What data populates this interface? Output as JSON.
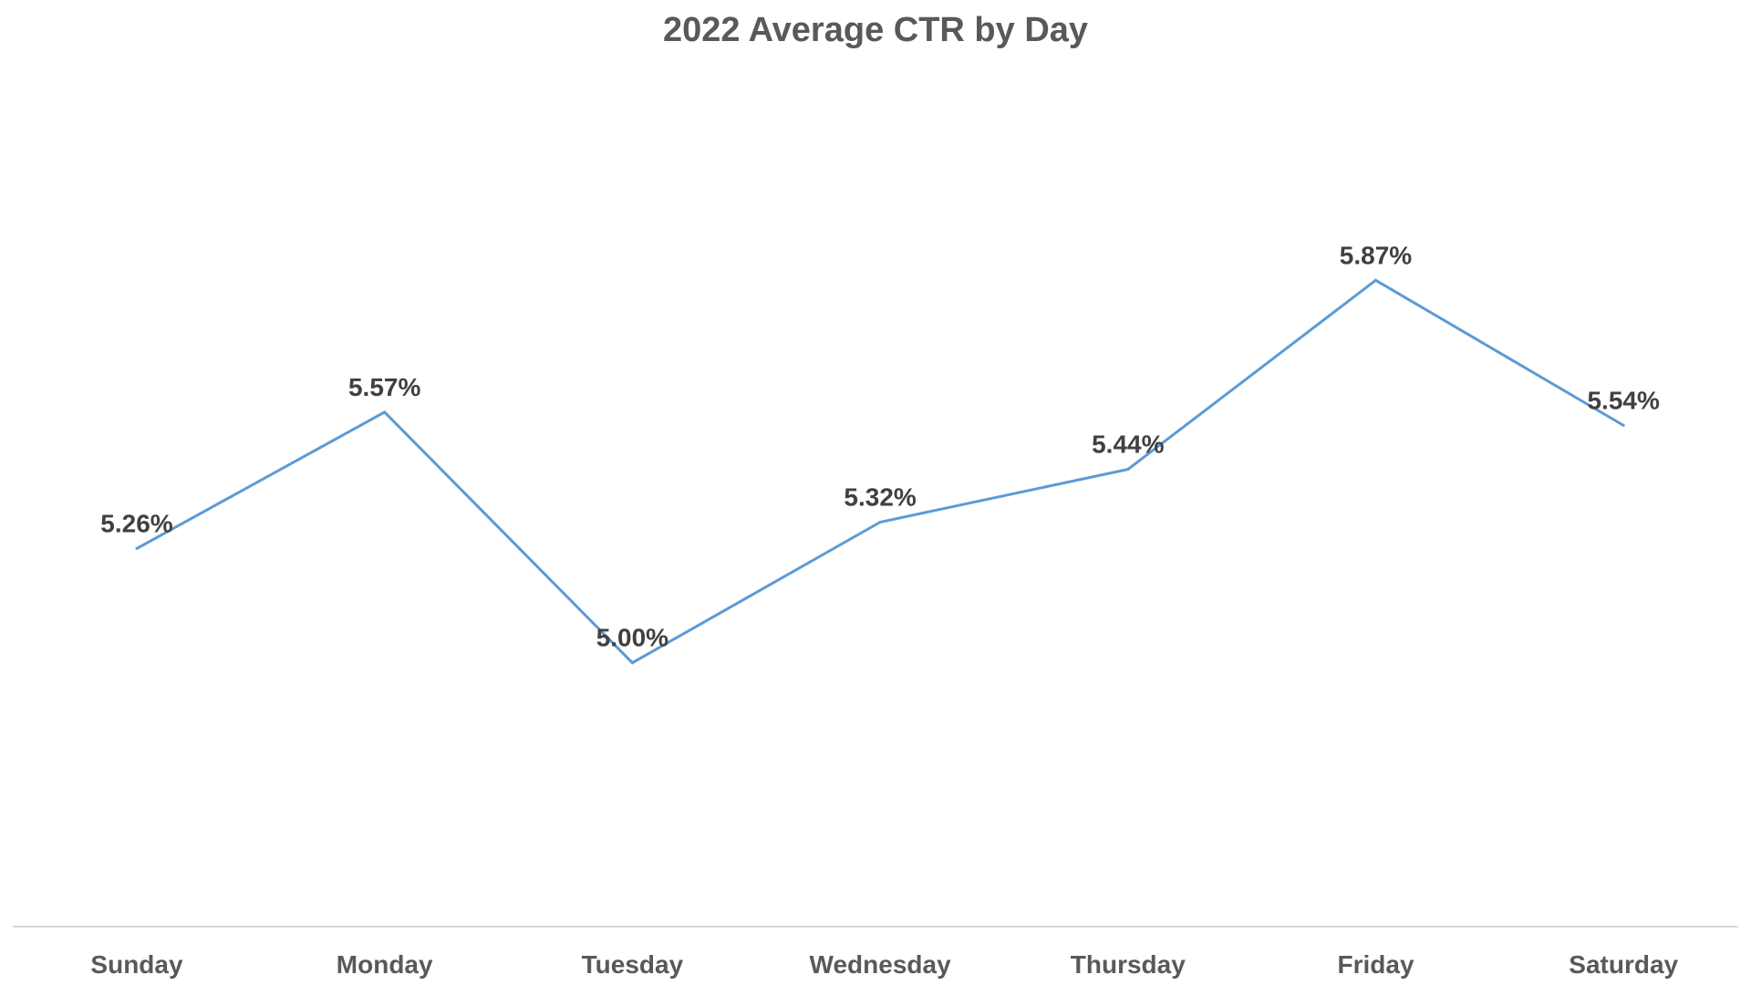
{
  "chart_data": {
    "type": "line",
    "title": "2022 Average CTR by Day",
    "xlabel": "",
    "ylabel": "",
    "categories": [
      "Sunday",
      "Monday",
      "Tuesday",
      "Wednesday",
      "Thursday",
      "Friday",
      "Saturday"
    ],
    "series": [
      {
        "values": [
          5.26,
          5.57,
          5.0,
          5.32,
          5.44,
          5.87,
          5.54
        ],
        "labels": [
          "5.26%",
          "5.57%",
          "5.00%",
          "5.32%",
          "5.44%",
          "5.87%",
          "5.54%"
        ],
        "color": "#5B9BD5"
      }
    ],
    "ylim": [
      4.4,
      6.3
    ],
    "grid": false,
    "legend": "none",
    "axis_color": "#D9D9D9"
  }
}
